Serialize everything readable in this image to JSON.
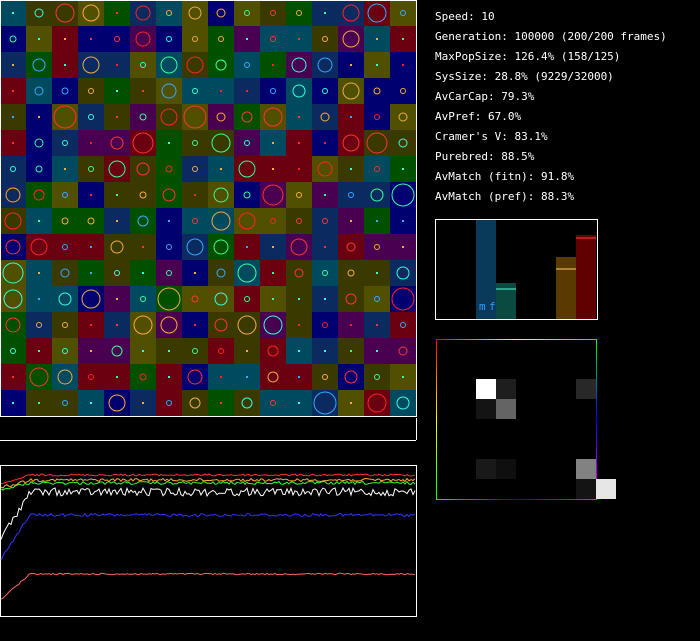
{
  "stats": [
    "Speed: 10",
    "Generation: 100000 (200/200 frames)",
    "MaxPopSize: 126.4% (158/125)",
    "SysSize: 28.8% (9229/32000)",
    "AvCarCap: 79.3%",
    "AvPref: 67.0%",
    "Cramer's V: 83.1%",
    "Purebred: 88.5%",
    "AvMatch (fitn): 91.8%",
    "AvMatch (pref): 88.3%"
  ],
  "bar_labels": [
    "m",
    "f"
  ]
}
